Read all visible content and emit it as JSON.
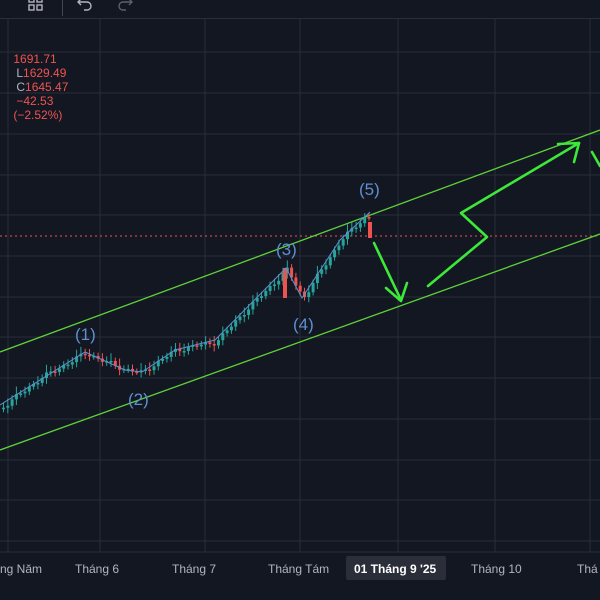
{
  "toolbar": {
    "icons": [
      "layout-grid-icon",
      "undo-icon",
      "redo-icon"
    ]
  },
  "ohlc": {
    "o_value": "1691.71",
    "h_prefix": "",
    "l_label": "L",
    "l_value": "1629.49",
    "c_label": "C",
    "c_value": "1645.47",
    "change": "−42.53",
    "change_pct": "(−2.52%)"
  },
  "colors": {
    "background": "#131722",
    "grid": "#2a2e39",
    "up": "#26a69a",
    "down": "#ef5350",
    "channel": "#5fd13a",
    "arrow": "#3ee83a",
    "wave_line": "#5f8fd1",
    "wave_label": "#5f8fd1",
    "price_line": "#ef5350"
  },
  "chart_data": {
    "type": "candlestick",
    "x_axis_labels": [
      "ng Năm",
      "Tháng 6",
      "Tháng 7",
      "Tháng Tám",
      "01 Tháng 9 '25",
      "Tháng 10",
      "Thá"
    ],
    "highlighted_x_label": "01 Tháng 9 '25",
    "last_close": 1645.47,
    "wave_labels": [
      "(1)",
      "(2)",
      "(3)",
      "(4)",
      "(5)"
    ],
    "annotations": [
      "ascending parallel channel",
      "projected drop to channel support",
      "projected rise to channel resistance"
    ],
    "grid": true
  }
}
